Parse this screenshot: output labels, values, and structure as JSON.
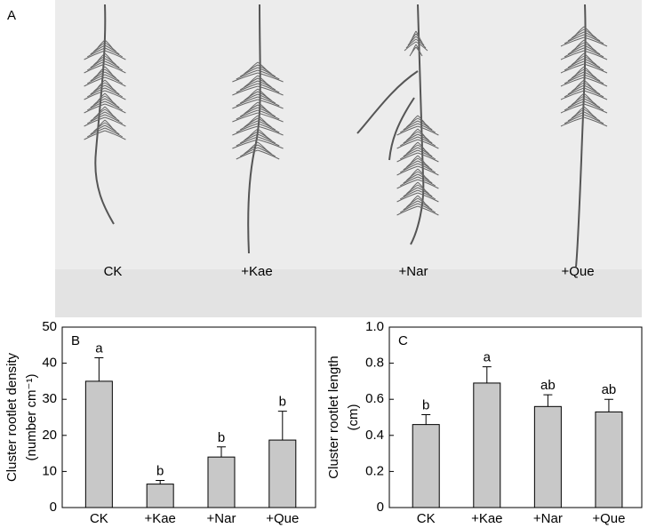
{
  "photo": {
    "panel": "A",
    "labels": [
      "CK",
      "+Kae",
      "+Nar",
      "+Que"
    ]
  },
  "chart_data": [
    {
      "type": "bar",
      "panel": "B",
      "ylabel": [
        "Cluster rootlet density",
        "(number cm⁻¹)"
      ],
      "categories": [
        "CK",
        "+Kae",
        "+Nar",
        "+Que"
      ],
      "values": [
        35,
        6.5,
        14,
        18.7
      ],
      "errors": [
        6.5,
        1,
        2.8,
        8
      ],
      "annotations": [
        "a",
        "b",
        "b",
        "b"
      ],
      "color": "#c8c8c8",
      "ylim": [
        0,
        50
      ],
      "yticks": [
        0,
        10,
        20,
        30,
        40,
        50
      ]
    },
    {
      "type": "bar",
      "panel": "C",
      "ylabel": [
        "Cluster rootlet length",
        "(cm)"
      ],
      "categories": [
        "CK",
        "+Kae",
        "+Nar",
        "+Que"
      ],
      "values": [
        0.46,
        0.69,
        0.56,
        0.53
      ],
      "errors": [
        0.055,
        0.09,
        0.065,
        0.07
      ],
      "annotations": [
        "b",
        "a",
        "ab",
        "ab"
      ],
      "color": "#c8c8c8",
      "ylim": [
        0,
        1
      ],
      "yticks": [
        0,
        0.2,
        0.4,
        0.6,
        0.8,
        {
          "value": 1,
          "label": "1.0"
        }
      ]
    }
  ]
}
